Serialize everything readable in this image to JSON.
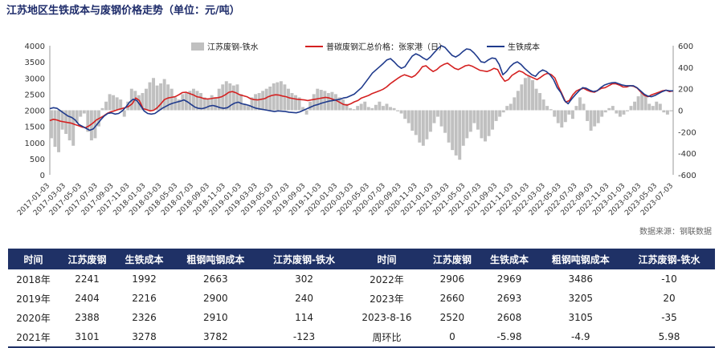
{
  "title": "江苏地区生铁成本与废钢价格走势（单位：元/吨）",
  "source": "数据来源：钢联数据",
  "colors": {
    "bar": "#c0c0c0",
    "scrap": "#d42020",
    "iron": "#1f3a8c",
    "header_bg": "#1f3166",
    "positive": "#d02020",
    "negative": "#2a8a3a"
  },
  "chart_data": {
    "type": "bar+line",
    "title": "江苏地区生铁成本与废钢价格走势（单位：元/吨）",
    "left_axis": {
      "ylim": [
        0,
        4000
      ],
      "ticks": [
        0,
        500,
        1000,
        1500,
        2000,
        2500,
        3000,
        3500,
        4000
      ]
    },
    "right_axis": {
      "ylim": [
        -600,
        600
      ],
      "ticks": [
        -600,
        -400,
        -200,
        0,
        200,
        400,
        600
      ]
    },
    "x_ticks": [
      "2017-01-03",
      "2017-03-03",
      "2017-05-03",
      "2017-07-03",
      "2017-09-03",
      "2017-11-03",
      "2018-01-03",
      "2018-03-03",
      "2018-05-03",
      "2018-07-03",
      "2018-09-03",
      "2018-11-03",
      "2019-01-03",
      "2019-03-03",
      "2019-05-03",
      "2019-07-03",
      "2019-09-03",
      "2019-11-03",
      "2020-01-03",
      "2020-03-03",
      "2020-05-03",
      "2020-07-03",
      "2020-09-03",
      "2020-11-03",
      "2021-01-03",
      "2021-03-03",
      "2021-05-03",
      "2021-07-03",
      "2021-09-03",
      "2021-11-03",
      "2022-01-03",
      "2022-03-03",
      "2022-05-03",
      "2022-07-03",
      "2022-09-03",
      "2022-11-03",
      "2023-01-03",
      "2023-03-03",
      "2023-05-03",
      "2023-07-03"
    ],
    "series": [
      {
        "name": "江苏废钢-铁水",
        "axis": "right",
        "kind": "bar",
        "values": [
          -260,
          -340,
          -390,
          -180,
          -220,
          -280,
          -330,
          -120,
          -60,
          -30,
          -200,
          -280,
          -260,
          -150,
          20,
          80,
          150,
          140,
          120,
          100,
          -60,
          80,
          200,
          180,
          140,
          160,
          200,
          260,
          300,
          230,
          250,
          290,
          240,
          200,
          120,
          100,
          150,
          160,
          180,
          200,
          180,
          160,
          120,
          100,
          140,
          120,
          200,
          240,
          270,
          250,
          230,
          240,
          150,
          60,
          40,
          120,
          150,
          160,
          180,
          200,
          220,
          250,
          260,
          270,
          240,
          200,
          160,
          140,
          120,
          30,
          -40,
          80,
          150,
          200,
          190,
          180,
          160,
          170,
          150,
          120,
          100,
          60,
          20,
          10,
          40,
          60,
          80,
          30,
          20,
          50,
          80,
          40,
          60,
          30,
          20,
          -10,
          -30,
          -80,
          -120,
          -190,
          -230,
          -300,
          -330,
          -270,
          -200,
          -120,
          -60,
          -150,
          -210,
          -300,
          -370,
          -420,
          -460,
          -330,
          -260,
          -200,
          -120,
          -180,
          -260,
          -290,
          -240,
          -180,
          -100,
          -60,
          -20,
          40,
          60,
          120,
          180,
          240,
          300,
          320,
          280,
          200,
          160,
          100,
          40,
          10,
          -60,
          -120,
          -160,
          -110,
          -40,
          -80,
          40,
          120,
          60,
          -100,
          -190,
          -150,
          -120,
          -60,
          -20,
          20,
          40,
          -30,
          -60,
          -40,
          -10,
          40,
          80,
          130,
          160,
          140,
          60,
          40,
          80,
          60,
          -20,
          -40,
          -10
        ]
      },
      {
        "name": "普碳废钢汇总价格：张家港（日）",
        "axis": "left",
        "kind": "line",
        "values": [
          1680,
          1720,
          1700,
          1660,
          1640,
          1620,
          1600,
          1560,
          1520,
          1480,
          1460,
          1520,
          1600,
          1700,
          1760,
          1820,
          1900,
          1950,
          1980,
          2020,
          2050,
          2080,
          2120,
          2200,
          2380,
          2300,
          2050,
          2020,
          1980,
          2000,
          2080,
          2200,
          2330,
          2380,
          2400,
          2420,
          2480,
          2550,
          2560,
          2520,
          2480,
          2420,
          2400,
          2360,
          2350,
          2360,
          2380,
          2390,
          2420,
          2480,
          2560,
          2580,
          2540,
          2480,
          2450,
          2420,
          2360,
          2330,
          2320,
          2340,
          2360,
          2420,
          2460,
          2480,
          2470,
          2440,
          2420,
          2380,
          2360,
          2340,
          2330,
          2320,
          2300,
          2320,
          2340,
          2360,
          2380,
          2400,
          2380,
          2340,
          2300,
          2240,
          2180,
          2160,
          2200,
          2260,
          2300,
          2380,
          2420,
          2460,
          2520,
          2560,
          2600,
          2650,
          2720,
          2820,
          2900,
          2980,
          3050,
          3100,
          3060,
          3020,
          3080,
          3200,
          3350,
          3380,
          3280,
          3200,
          3260,
          3360,
          3420,
          3460,
          3380,
          3300,
          3260,
          3320,
          3380,
          3400,
          3360,
          3300,
          3240,
          3220,
          3200,
          3240,
          3300,
          3260,
          3050,
          2900,
          2950,
          3080,
          3150,
          3220,
          3180,
          3100,
          3050,
          3000,
          2950,
          3020,
          3100,
          3150,
          3100,
          3000,
          2720,
          2500,
          2250,
          2300,
          2480,
          2600,
          2650,
          2680,
          2620,
          2580,
          2560,
          2620,
          2680,
          2700,
          2760,
          2820,
          2820,
          2780,
          2720,
          2720,
          2760,
          2740,
          2680,
          2560,
          2460,
          2420,
          2480,
          2520,
          2560,
          2600,
          2620,
          2580,
          2600
        ]
      },
      {
        "name": "生铁成本",
        "axis": "left",
        "kind": "line",
        "values": [
          2050,
          2080,
          2060,
          1980,
          1900,
          1820,
          1780,
          1700,
          1560,
          1500,
          1440,
          1380,
          1420,
          1560,
          1700,
          1820,
          1900,
          1920,
          1880,
          1900,
          1980,
          2100,
          2250,
          2340,
          2300,
          2150,
          1980,
          1900,
          1880,
          1900,
          1980,
          2060,
          2120,
          2180,
          2220,
          2250,
          2280,
          2320,
          2260,
          2180,
          2100,
          2060,
          2050,
          2080,
          2130,
          2150,
          2120,
          2080,
          2060,
          2080,
          2160,
          2220,
          2250,
          2200,
          2180,
          2150,
          2100,
          2060,
          2040,
          2020,
          2000,
          1980,
          1960,
          1980,
          1970,
          1960,
          1940,
          1930,
          1920,
          1950,
          2000,
          2050,
          2100,
          2150,
          2180,
          2220,
          2250,
          2280,
          2300,
          2320,
          2340,
          2380,
          2400,
          2450,
          2500,
          2600,
          2700,
          2850,
          3000,
          3150,
          3250,
          3350,
          3450,
          3560,
          3600,
          3500,
          3380,
          3300,
          3350,
          3520,
          3680,
          3750,
          3700,
          3620,
          3560,
          3650,
          3780,
          3900,
          4000,
          3950,
          3820,
          3700,
          3650,
          3720,
          3820,
          3900,
          3880,
          3780,
          3650,
          3500,
          3480,
          3560,
          3620,
          3600,
          3420,
          3100,
          3200,
          3350,
          3450,
          3500,
          3420,
          3300,
          3200,
          3100,
          3050,
          3180,
          3250,
          3200,
          3100,
          2950,
          2700,
          2550,
          2300,
          2200,
          2350,
          2480,
          2600,
          2700,
          2680,
          2620,
          2580,
          2600,
          2700,
          2780,
          2820,
          2850,
          2860,
          2820,
          2780,
          2760,
          2760,
          2760,
          2700,
          2600,
          2500,
          2440,
          2420,
          2460,
          2520,
          2580,
          2620,
          2600,
          2600
        ]
      }
    ]
  },
  "table": {
    "headers": [
      "时间",
      "江苏废钢",
      "生铁成本",
      "粗钢吨钢成本",
      "江苏废钢-铁水",
      "时间",
      "江苏废钢",
      "生铁成本",
      "粗钢吨钢成本",
      "江苏废钢-铁水"
    ],
    "rows": [
      {
        "cells": [
          "2018年",
          "2241",
          "1992",
          "2663",
          "302",
          "2022年",
          "2906",
          "2969",
          "3486",
          "-10"
        ],
        "tone4": "pos",
        "tone9": "neg"
      },
      {
        "cells": [
          "2019年",
          "2404",
          "2216",
          "2900",
          "240",
          "2023年",
          "2660",
          "2693",
          "3205",
          "20"
        ],
        "tone4": "pos",
        "tone9": "pos"
      },
      {
        "cells": [
          "2020年",
          "2388",
          "2326",
          "2910",
          "114",
          "2023-8-16",
          "2520",
          "2608",
          "3105",
          "-35"
        ],
        "tone4": "pos",
        "tone9": "neg"
      },
      {
        "cells": [
          "2021年",
          "3101",
          "3278",
          "3782",
          "-123",
          "周环比",
          "0",
          "-5.98",
          "-4.9",
          "5.98"
        ],
        "tone4": "neg",
        "tone9": "pos"
      }
    ]
  }
}
